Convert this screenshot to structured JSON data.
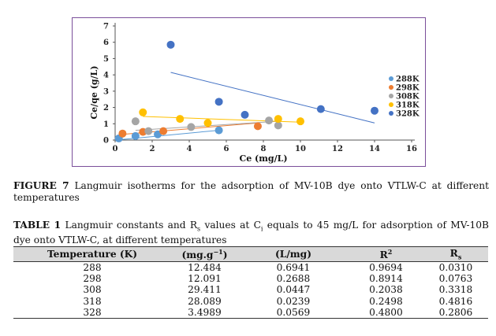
{
  "chart_data": {
    "type": "scatter",
    "title": "",
    "xlabel": "Ce (mg/L)",
    "ylabel": "Ce/qe (g/L)",
    "xlim": [
      0,
      16
    ],
    "ylim": [
      0,
      7
    ],
    "x_ticks": [
      "0",
      "2",
      "4",
      "6",
      "8",
      "10",
      "12",
      "14",
      "16"
    ],
    "y_ticks": [
      "0",
      "1",
      "2",
      "3",
      "4",
      "5",
      "6",
      "7"
    ],
    "legend_position": "right",
    "series": [
      {
        "name": "288K",
        "color": "#5b9bd5",
        "points": [
          [
            0.2,
            0.1
          ],
          [
            1.1,
            0.25
          ],
          [
            2.3,
            0.35
          ],
          [
            5.6,
            0.6
          ]
        ],
        "trend": [
          [
            0.2,
            0.02
          ],
          [
            5.6,
            0.6
          ]
        ]
      },
      {
        "name": "298K",
        "color": "#ed7d31",
        "points": [
          [
            0.4,
            0.4
          ],
          [
            1.5,
            0.5
          ],
          [
            2.6,
            0.55
          ],
          [
            7.7,
            0.85
          ]
        ],
        "trend": [
          [
            0.4,
            0.35
          ],
          [
            7.7,
            1.05
          ]
        ]
      },
      {
        "name": "308K",
        "color": "#a5a5a5",
        "points": [
          [
            1.1,
            1.15
          ],
          [
            1.8,
            0.55
          ],
          [
            4.1,
            0.8
          ],
          [
            8.3,
            1.2
          ],
          [
            8.8,
            0.9
          ]
        ],
        "trend": [
          [
            1.1,
            0.6
          ],
          [
            8.8,
            1.15
          ]
        ]
      },
      {
        "name": "318K",
        "color": "#ffc000",
        "points": [
          [
            1.5,
            1.7
          ],
          [
            3.5,
            1.3
          ],
          [
            5.0,
            1.05
          ],
          [
            8.8,
            1.3
          ],
          [
            10.0,
            1.15
          ]
        ],
        "trend": [
          [
            1.5,
            1.45
          ],
          [
            10.0,
            1.1
          ]
        ]
      },
      {
        "name": "328K",
        "color": "#4472c4",
        "points": [
          [
            3.0,
            5.85
          ],
          [
            5.6,
            2.35
          ],
          [
            7.0,
            1.55
          ],
          [
            11.1,
            1.9
          ],
          [
            14.0,
            1.8
          ]
        ],
        "trend": [
          [
            3.0,
            4.15
          ],
          [
            14.0,
            1.05
          ]
        ]
      }
    ]
  },
  "figure_caption": {
    "label": "FIGURE 7",
    "text": " Langmuir isotherms for the adsorption of MV-10B dye onto VTLW-C at different temperatures"
  },
  "table_caption": {
    "label": "TABLE 1",
    "text_1": " Langmuir constants and R",
    "sub_1": "s",
    "text_2": " values at C",
    "sub_2": "i",
    "text_3": " equals to 45 mg/L for adsorption of MV-10B dye onto VTLW-C, at different temperatures"
  },
  "table": {
    "headers": [
      "Temperature (K)",
      "(mg.g",
      "(L/mg)",
      "R",
      "R"
    ],
    "header_sup": [
      "",
      "−1",
      "",
      "2",
      ""
    ],
    "header_tail": [
      "",
      ")",
      "",
      "",
      ""
    ],
    "header_sub": [
      "",
      "",
      "",
      "",
      "s"
    ],
    "rows": [
      [
        "288",
        "12.484",
        "0.6941",
        "0.9694",
        "0.0310"
      ],
      [
        "298",
        "12.091",
        "0.2688",
        "0.8914",
        "0.0763"
      ],
      [
        "308",
        "29.411",
        "0.0447",
        "0.2038",
        "0.3318"
      ],
      [
        "318",
        "28.089",
        "0.0239",
        "0.2498",
        "0.4816"
      ],
      [
        "328",
        "3.4989",
        "0.0569",
        "0.4800",
        "0.2806"
      ]
    ]
  }
}
